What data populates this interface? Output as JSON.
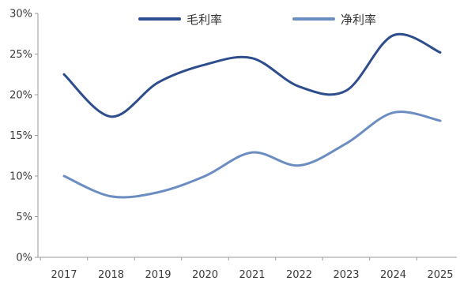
{
  "chart_data": {
    "type": "line",
    "title": "",
    "xlabel": "",
    "ylabel": "",
    "categories": [
      "2017",
      "2018",
      "2019",
      "2020",
      "2021",
      "2022",
      "2023",
      "2024",
      "2025"
    ],
    "ylim": [
      0,
      30
    ],
    "y_ticks": [
      "0%",
      "5%",
      "10%",
      "15%",
      "20%",
      "25%",
      "30%"
    ],
    "y_tick_values": [
      0,
      5,
      10,
      15,
      20,
      25,
      30
    ],
    "grid": false,
    "legend_position": "top",
    "smooth": true,
    "series": [
      {
        "name": "毛利率",
        "color": "#2e4d8c",
        "values": [
          22.5,
          17.3,
          21.5,
          23.7,
          24.5,
          21.0,
          20.5,
          27.3,
          25.2
        ]
      },
      {
        "name": "净利率",
        "color": "#6c8dc1",
        "values": [
          10.0,
          7.5,
          8.0,
          10.0,
          12.9,
          11.3,
          14.0,
          17.8,
          16.8
        ]
      }
    ]
  }
}
